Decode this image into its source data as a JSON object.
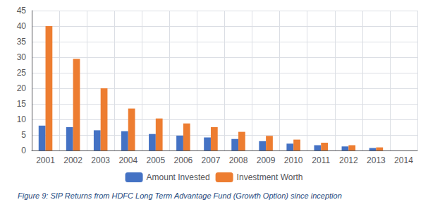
{
  "chart_data": {
    "type": "bar",
    "title": "Figure 9: SIP Returns from HDFC Long Term Advantage Fund (Growth Option) since inception",
    "categories": [
      "2001",
      "2002",
      "2003",
      "2004",
      "2005",
      "2006",
      "2007",
      "2008",
      "2009",
      "2010",
      "2011",
      "2012",
      "2013",
      "2014"
    ],
    "series": [
      {
        "name": "Amount Invested",
        "color": "#4472C4",
        "values": [
          8,
          7.5,
          6.5,
          6.2,
          5.3,
          4.8,
          4.2,
          3.7,
          3.0,
          2.2,
          1.7,
          1.3,
          0.8,
          0
        ]
      },
      {
        "name": "Investment Worth",
        "color": "#ED7D31",
        "values": [
          40,
          29.5,
          20,
          13.5,
          10.3,
          8.7,
          7.5,
          6.0,
          4.7,
          3.5,
          2.5,
          1.7,
          1.0,
          0
        ]
      }
    ],
    "ylim": [
      0,
      45
    ],
    "yticks": [
      0,
      5,
      10,
      15,
      20,
      25,
      30,
      35,
      40,
      45
    ],
    "grid": true,
    "legend": "bottom"
  }
}
